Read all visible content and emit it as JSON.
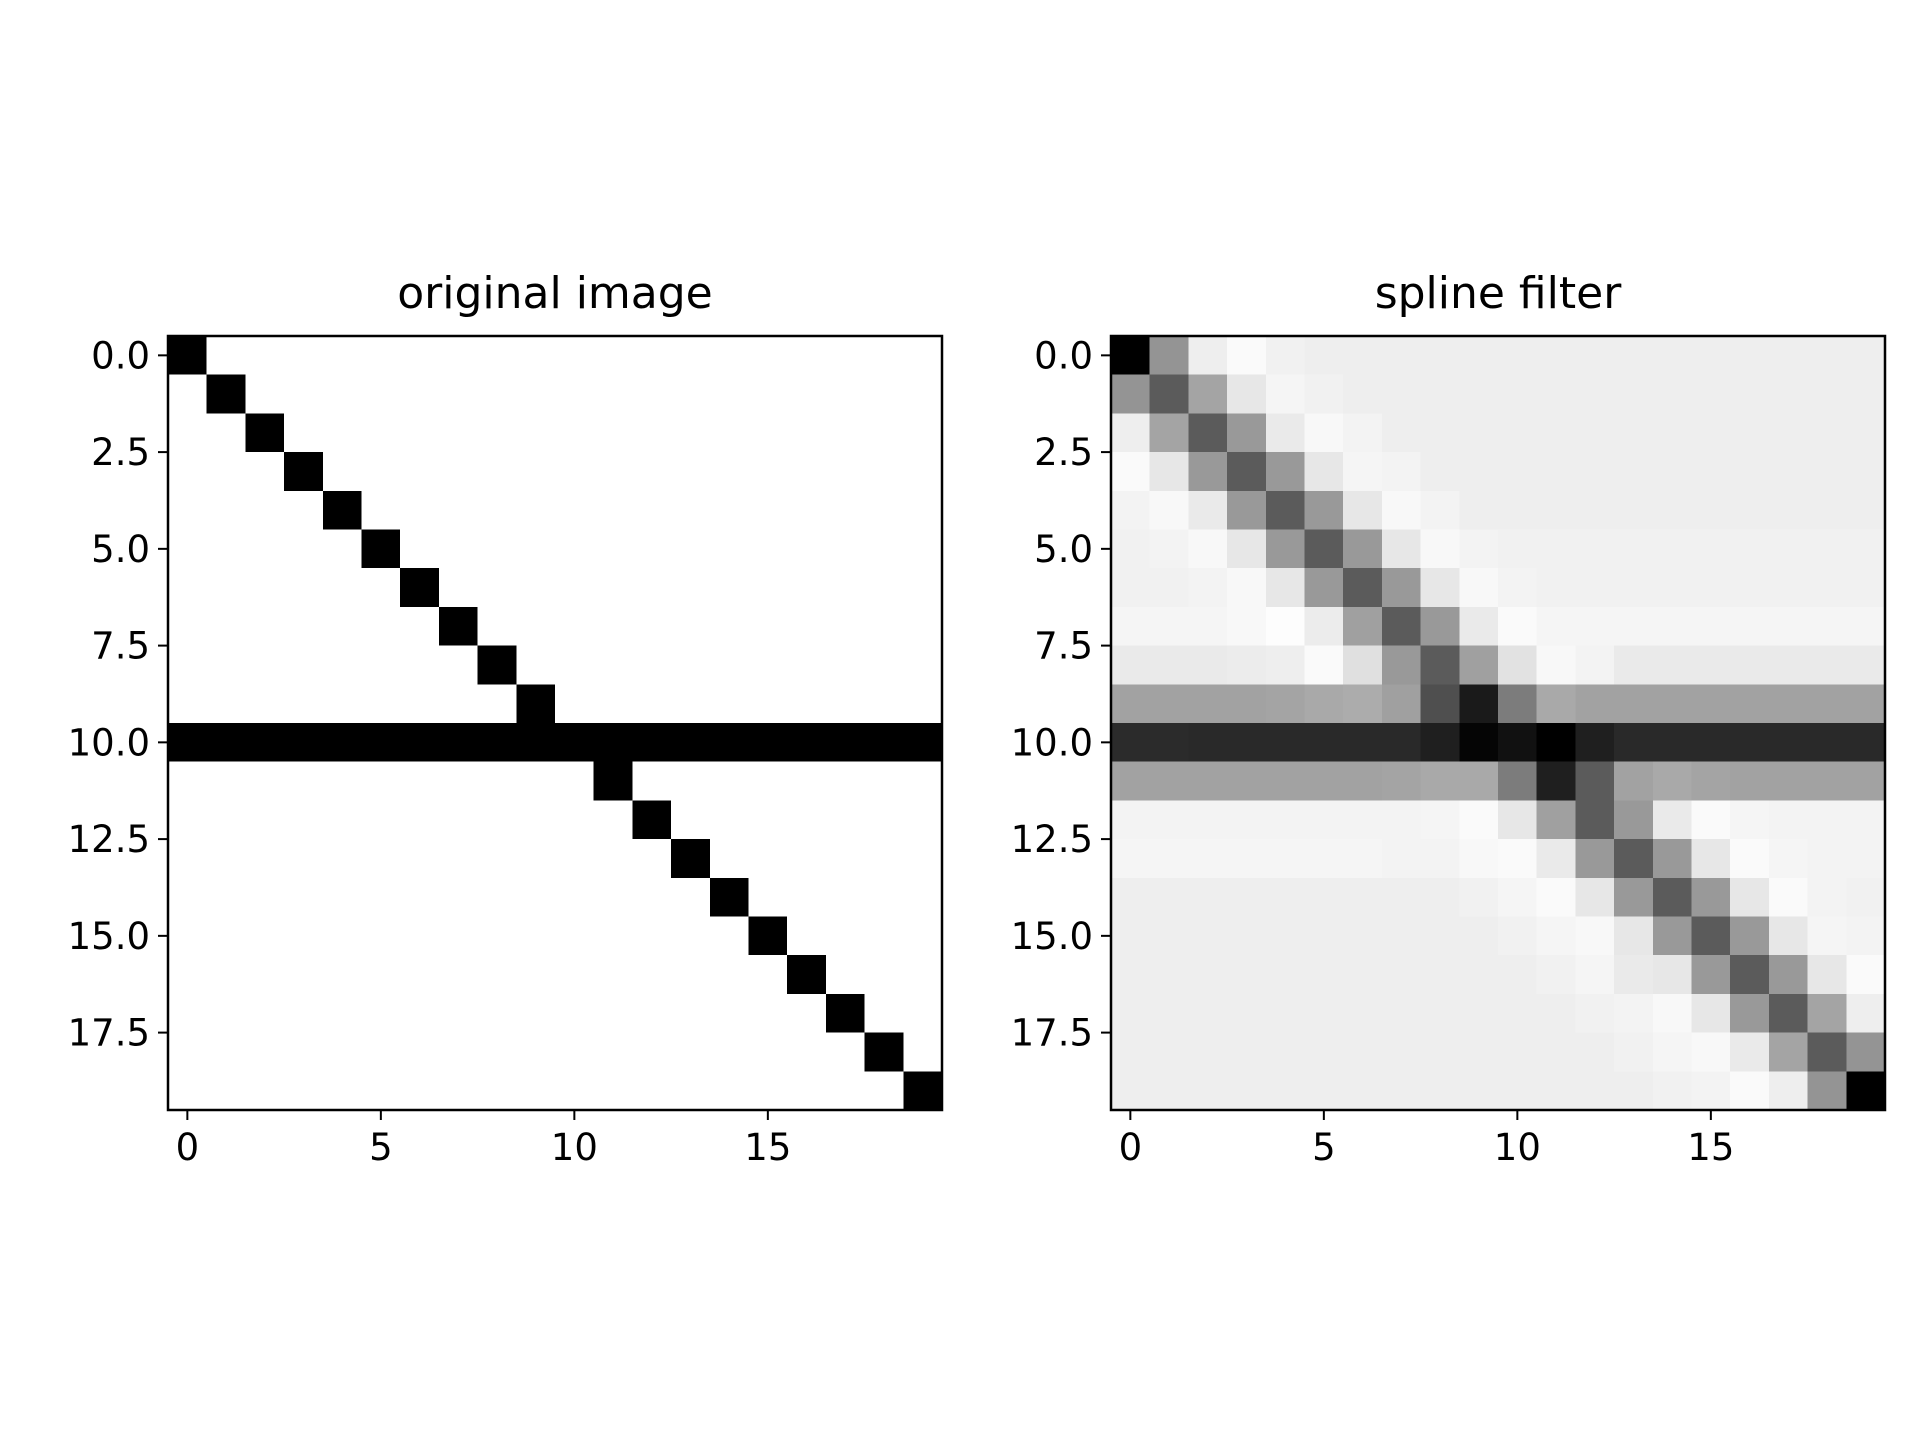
{
  "chart_data": [
    {
      "type": "heatmap",
      "title": "original image",
      "colormap": "gray_r",
      "vmin": 0,
      "vmax": 1,
      "x_ticks": [
        0,
        5,
        10,
        15
      ],
      "x_tick_labels": [
        "0",
        "5",
        "10",
        "15"
      ],
      "y_ticks": [
        0,
        2.5,
        5,
        7.5,
        10,
        12.5,
        15,
        17.5
      ],
      "y_tick_labels": [
        "0.0",
        "2.5",
        "5.0",
        "7.5",
        "10.0",
        "12.5",
        "15.0",
        "17.5"
      ],
      "xlim": [
        -0.5,
        19.5
      ],
      "ylim": [
        19.5,
        -0.5
      ],
      "xlabel": "",
      "ylabel": "",
      "values": [
        [
          1,
          0,
          0,
          0,
          0,
          0,
          0,
          0,
          0,
          0,
          0,
          0,
          0,
          0,
          0,
          0,
          0,
          0,
          0,
          0
        ],
        [
          0,
          1,
          0,
          0,
          0,
          0,
          0,
          0,
          0,
          0,
          0,
          0,
          0,
          0,
          0,
          0,
          0,
          0,
          0,
          0
        ],
        [
          0,
          0,
          1,
          0,
          0,
          0,
          0,
          0,
          0,
          0,
          0,
          0,
          0,
          0,
          0,
          0,
          0,
          0,
          0,
          0
        ],
        [
          0,
          0,
          0,
          1,
          0,
          0,
          0,
          0,
          0,
          0,
          0,
          0,
          0,
          0,
          0,
          0,
          0,
          0,
          0,
          0
        ],
        [
          0,
          0,
          0,
          0,
          1,
          0,
          0,
          0,
          0,
          0,
          0,
          0,
          0,
          0,
          0,
          0,
          0,
          0,
          0,
          0
        ],
        [
          0,
          0,
          0,
          0,
          0,
          1,
          0,
          0,
          0,
          0,
          0,
          0,
          0,
          0,
          0,
          0,
          0,
          0,
          0,
          0
        ],
        [
          0,
          0,
          0,
          0,
          0,
          0,
          1,
          0,
          0,
          0,
          0,
          0,
          0,
          0,
          0,
          0,
          0,
          0,
          0,
          0
        ],
        [
          0,
          0,
          0,
          0,
          0,
          0,
          0,
          1,
          0,
          0,
          0,
          0,
          0,
          0,
          0,
          0,
          0,
          0,
          0,
          0
        ],
        [
          0,
          0,
          0,
          0,
          0,
          0,
          0,
          0,
          1,
          0,
          0,
          0,
          0,
          0,
          0,
          0,
          0,
          0,
          0,
          0
        ],
        [
          0,
          0,
          0,
          0,
          0,
          0,
          0,
          0,
          0,
          1,
          0,
          0,
          0,
          0,
          0,
          0,
          0,
          0,
          0,
          0
        ],
        [
          1,
          1,
          1,
          1,
          1,
          1,
          1,
          1,
          1,
          1,
          1,
          1,
          1,
          1,
          1,
          1,
          1,
          1,
          1,
          1
        ],
        [
          0,
          0,
          0,
          0,
          0,
          0,
          0,
          0,
          0,
          0,
          0,
          1,
          0,
          0,
          0,
          0,
          0,
          0,
          0,
          0
        ],
        [
          0,
          0,
          0,
          0,
          0,
          0,
          0,
          0,
          0,
          0,
          0,
          0,
          1,
          0,
          0,
          0,
          0,
          0,
          0,
          0
        ],
        [
          0,
          0,
          0,
          0,
          0,
          0,
          0,
          0,
          0,
          0,
          0,
          0,
          0,
          1,
          0,
          0,
          0,
          0,
          0,
          0
        ],
        [
          0,
          0,
          0,
          0,
          0,
          0,
          0,
          0,
          0,
          0,
          0,
          0,
          0,
          0,
          1,
          0,
          0,
          0,
          0,
          0
        ],
        [
          0,
          0,
          0,
          0,
          0,
          0,
          0,
          0,
          0,
          0,
          0,
          0,
          0,
          0,
          0,
          1,
          0,
          0,
          0,
          0
        ],
        [
          0,
          0,
          0,
          0,
          0,
          0,
          0,
          0,
          0,
          0,
          0,
          0,
          0,
          0,
          0,
          0,
          1,
          0,
          0,
          0
        ],
        [
          0,
          0,
          0,
          0,
          0,
          0,
          0,
          0,
          0,
          0,
          0,
          0,
          0,
          0,
          0,
          0,
          0,
          1,
          0,
          0
        ],
        [
          0,
          0,
          0,
          0,
          0,
          0,
          0,
          0,
          0,
          0,
          0,
          0,
          0,
          0,
          0,
          0,
          0,
          0,
          1,
          0
        ],
        [
          0,
          0,
          0,
          0,
          0,
          0,
          0,
          0,
          0,
          0,
          0,
          0,
          0,
          0,
          0,
          0,
          0,
          0,
          0,
          1
        ]
      ]
    },
    {
      "type": "heatmap",
      "title": "spline filter",
      "colormap": "gray_r",
      "vmin": -0.07,
      "vmax": 1.0,
      "x_ticks": [
        0,
        5,
        10,
        15
      ],
      "x_tick_labels": [
        "0",
        "5",
        "10",
        "15"
      ],
      "y_ticks": [
        0,
        2.5,
        5,
        7.5,
        10,
        12.5,
        15,
        17.5
      ],
      "y_tick_labels": [
        "0.0",
        "2.5",
        "5.0",
        "7.5",
        "10.0",
        "12.5",
        "15.0",
        "17.5"
      ],
      "xlim": [
        -0.5,
        19.5
      ],
      "ylim": [
        19.5,
        -0.5
      ],
      "xlabel": "",
      "ylabel": "",
      "values": [
        [
          1.0,
          0.38,
          0.0,
          -0.05,
          -0.01,
          0.0,
          0.0,
          0.0,
          0.0,
          0.0,
          0.0,
          0.0,
          0.0,
          0.0,
          0.0,
          0.0,
          0.0,
          0.0,
          0.0,
          0.0
        ],
        [
          0.38,
          0.62,
          0.31,
          0.03,
          -0.03,
          -0.01,
          0.0,
          0.0,
          0.0,
          0.0,
          0.0,
          0.0,
          0.0,
          0.0,
          0.0,
          0.0,
          0.0,
          0.0,
          0.0,
          0.0
        ],
        [
          0.0,
          0.31,
          0.62,
          0.36,
          0.02,
          -0.04,
          -0.02,
          0.0,
          0.0,
          0.0,
          0.0,
          0.0,
          0.0,
          0.0,
          0.0,
          0.0,
          0.0,
          0.0,
          0.0,
          0.0
        ],
        [
          -0.05,
          0.03,
          0.36,
          0.62,
          0.36,
          0.03,
          -0.03,
          -0.02,
          0.0,
          0.0,
          0.0,
          0.0,
          0.0,
          0.0,
          0.0,
          0.0,
          0.0,
          0.0,
          0.0,
          0.0
        ],
        [
          -0.02,
          -0.04,
          0.02,
          0.36,
          0.62,
          0.36,
          0.03,
          -0.04,
          -0.02,
          0.0,
          0.0,
          0.0,
          0.0,
          0.0,
          0.0,
          0.0,
          0.0,
          0.0,
          0.0,
          0.0
        ],
        [
          -0.01,
          -0.02,
          -0.04,
          0.03,
          0.36,
          0.62,
          0.36,
          0.03,
          -0.04,
          -0.02,
          -0.01,
          -0.01,
          -0.01,
          -0.01,
          -0.01,
          -0.01,
          -0.01,
          -0.01,
          -0.01,
          -0.01
        ],
        [
          -0.01,
          -0.01,
          -0.02,
          -0.04,
          0.03,
          0.36,
          0.62,
          0.36,
          0.03,
          -0.04,
          -0.02,
          -0.01,
          -0.01,
          -0.01,
          -0.01,
          -0.01,
          -0.01,
          -0.01,
          -0.01,
          -0.01
        ],
        [
          -0.03,
          -0.03,
          -0.03,
          -0.04,
          -0.06,
          0.01,
          0.33,
          0.62,
          0.36,
          0.02,
          -0.05,
          -0.03,
          -0.03,
          -0.03,
          -0.03,
          -0.03,
          -0.03,
          -0.03,
          -0.03,
          -0.03
        ],
        [
          0.02,
          0.02,
          0.02,
          0.01,
          0.0,
          -0.05,
          0.06,
          0.36,
          0.62,
          0.33,
          0.05,
          -0.04,
          -0.02,
          0.02,
          0.02,
          0.02,
          0.02,
          0.02,
          0.02,
          0.02
        ],
        [
          0.32,
          0.32,
          0.32,
          0.32,
          0.31,
          0.29,
          0.28,
          0.33,
          0.67,
          0.89,
          0.48,
          0.29,
          0.32,
          0.32,
          0.32,
          0.32,
          0.32,
          0.32,
          0.32,
          0.32
        ],
        [
          0.82,
          0.82,
          0.83,
          0.83,
          0.83,
          0.83,
          0.83,
          0.83,
          0.87,
          0.98,
          0.93,
          1.0,
          0.87,
          0.83,
          0.83,
          0.83,
          0.83,
          0.83,
          0.83,
          0.83
        ],
        [
          0.32,
          0.32,
          0.32,
          0.32,
          0.32,
          0.32,
          0.32,
          0.31,
          0.29,
          0.29,
          0.48,
          0.87,
          0.62,
          0.32,
          0.29,
          0.31,
          0.32,
          0.32,
          0.32,
          0.32
        ],
        [
          -0.02,
          -0.02,
          -0.02,
          -0.02,
          -0.02,
          -0.02,
          -0.02,
          -0.02,
          -0.03,
          -0.05,
          0.03,
          0.33,
          0.62,
          0.36,
          0.02,
          -0.05,
          -0.03,
          -0.02,
          -0.02,
          -0.02
        ],
        [
          -0.03,
          -0.03,
          -0.03,
          -0.03,
          -0.03,
          -0.03,
          -0.03,
          -0.02,
          -0.02,
          -0.04,
          -0.05,
          0.02,
          0.36,
          0.62,
          0.36,
          0.03,
          -0.05,
          -0.03,
          -0.02,
          -0.02
        ],
        [
          0.0,
          0.0,
          0.0,
          0.0,
          0.0,
          0.0,
          0.0,
          0.0,
          0.0,
          -0.01,
          -0.03,
          -0.05,
          0.03,
          0.36,
          0.62,
          0.36,
          0.03,
          -0.05,
          -0.02,
          -0.01
        ],
        [
          0.0,
          0.0,
          0.0,
          0.0,
          0.0,
          0.0,
          0.0,
          0.0,
          0.0,
          0.0,
          -0.01,
          -0.03,
          -0.04,
          0.03,
          0.36,
          0.62,
          0.36,
          0.03,
          -0.03,
          -0.02
        ],
        [
          0.0,
          0.0,
          0.0,
          0.0,
          0.0,
          0.0,
          0.0,
          0.0,
          0.0,
          0.0,
          0.0,
          -0.01,
          -0.03,
          0.02,
          0.03,
          0.36,
          0.62,
          0.36,
          0.03,
          -0.05
        ],
        [
          0.0,
          0.0,
          0.0,
          0.0,
          0.0,
          0.0,
          0.0,
          0.0,
          0.0,
          0.0,
          0.0,
          0.0,
          -0.01,
          -0.02,
          -0.04,
          0.03,
          0.36,
          0.62,
          0.31,
          0.0
        ],
        [
          0.0,
          0.0,
          0.0,
          0.0,
          0.0,
          0.0,
          0.0,
          0.0,
          0.0,
          0.0,
          0.0,
          0.0,
          0.0,
          -0.01,
          -0.03,
          -0.04,
          0.02,
          0.31,
          0.62,
          0.38
        ],
        [
          0.0,
          0.0,
          0.0,
          0.0,
          0.0,
          0.0,
          0.0,
          0.0,
          0.0,
          0.0,
          0.0,
          0.0,
          0.0,
          0.0,
          -0.01,
          -0.02,
          -0.05,
          0.0,
          0.38,
          1.0
        ]
      ]
    }
  ]
}
